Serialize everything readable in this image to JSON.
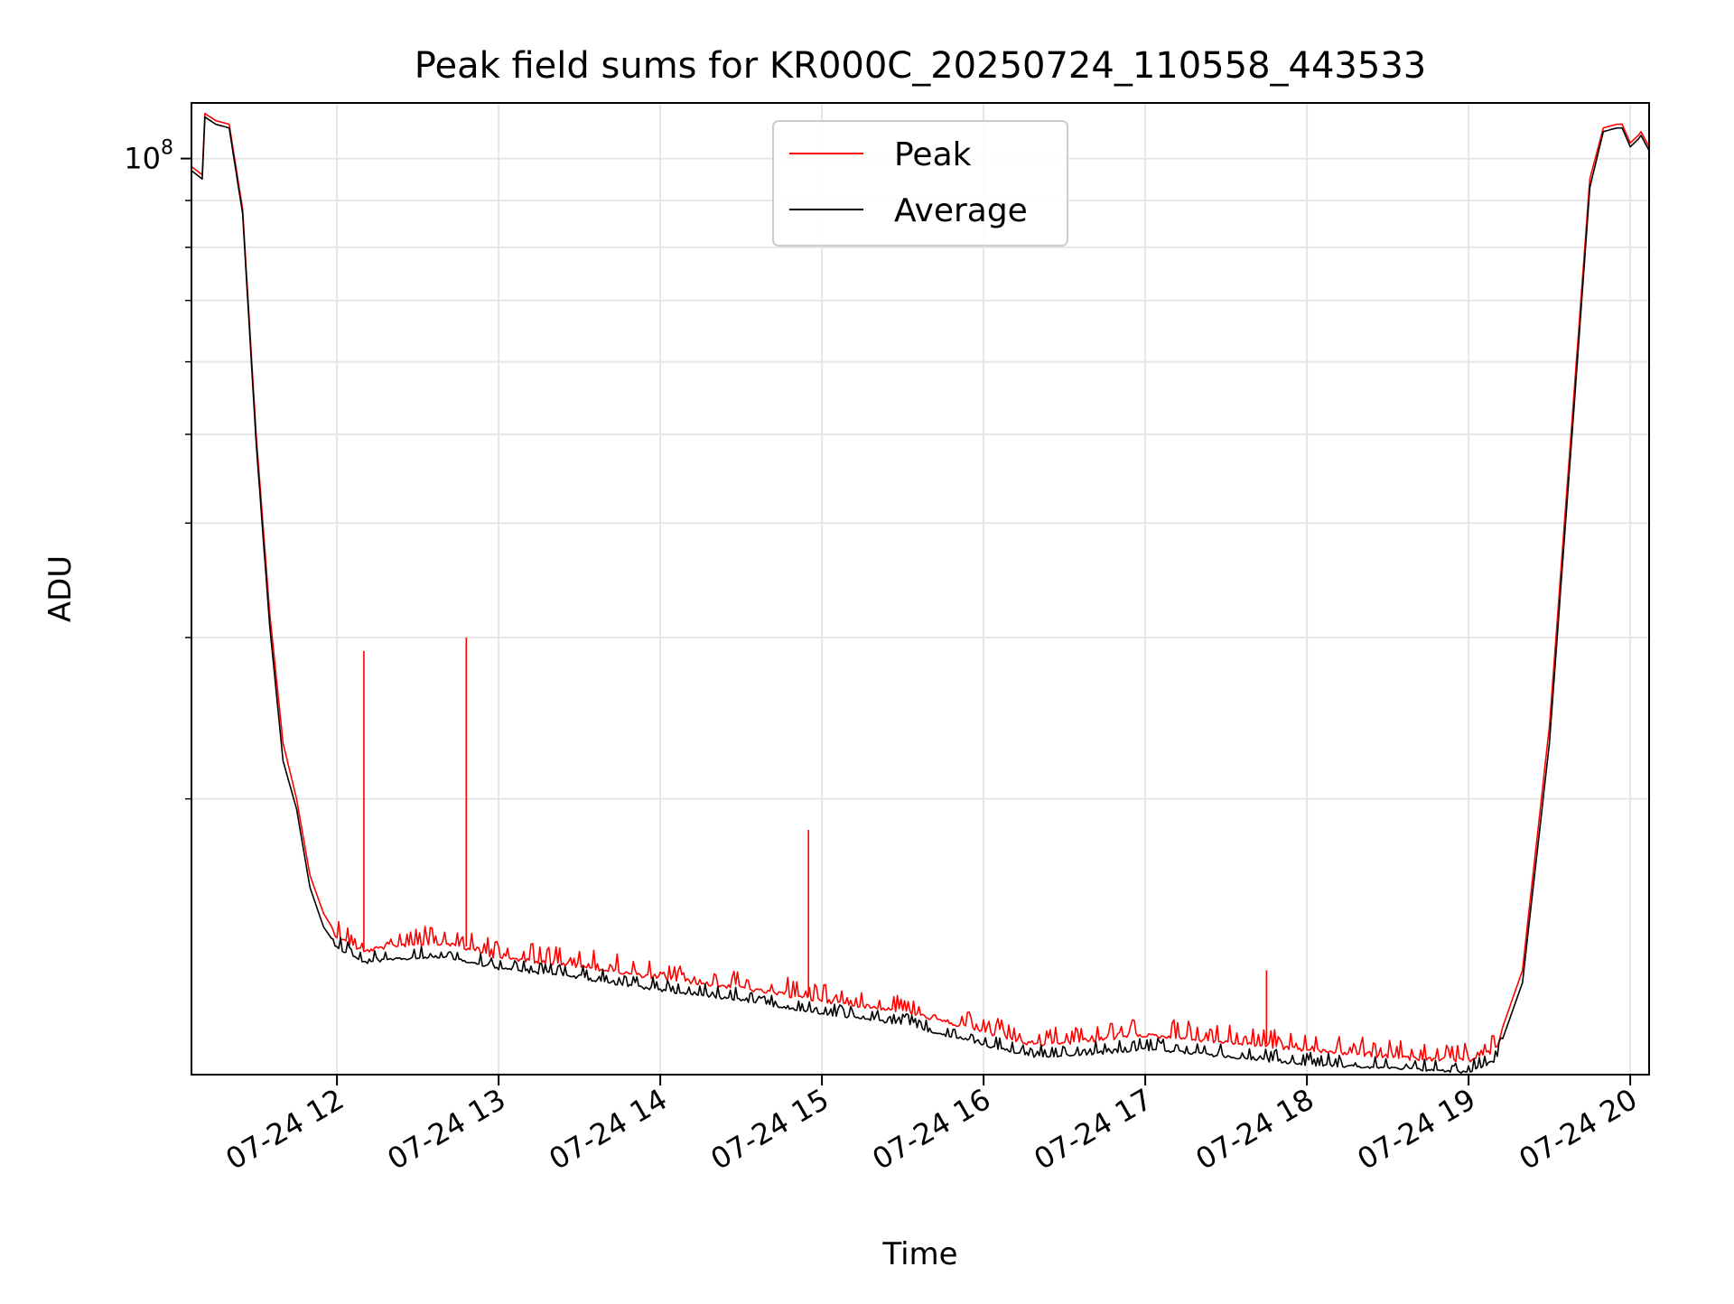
{
  "chart_data": {
    "type": "line",
    "title": "Peak field sums for KR000C_20250724_110558_443533",
    "xlabel": "Time",
    "ylabel": "ADU",
    "y_scale": "log",
    "grid": true,
    "legend_position": "upper-center",
    "xlim": [
      "2025-07-24 11:06",
      "2025-07-24 20:07"
    ],
    "ylim": [
      10000000,
      115000000
    ],
    "x_ticks": [
      {
        "value": "2025-07-24 12:00",
        "label": "07-24 12"
      },
      {
        "value": "2025-07-24 13:00",
        "label": "07-24 13"
      },
      {
        "value": "2025-07-24 14:00",
        "label": "07-24 14"
      },
      {
        "value": "2025-07-24 15:00",
        "label": "07-24 15"
      },
      {
        "value": "2025-07-24 16:00",
        "label": "07-24 16"
      },
      {
        "value": "2025-07-24 17:00",
        "label": "07-24 17"
      },
      {
        "value": "2025-07-24 18:00",
        "label": "07-24 18"
      },
      {
        "value": "2025-07-24 19:00",
        "label": "07-24 19"
      },
      {
        "value": "2025-07-24 20:00",
        "label": "07-24 20"
      }
    ],
    "y_ticks": [
      {
        "value": 100000000,
        "base": "10",
        "exponent": "8"
      }
    ],
    "series": [
      {
        "name": "Peak",
        "color": "#ff0000",
        "x": [
          "2025-07-24 11:06",
          "2025-07-24 11:08",
          "2025-07-24 11:10",
          "2025-07-24 11:11",
          "2025-07-24 11:15",
          "2025-07-24 11:20",
          "2025-07-24 11:25",
          "2025-07-24 11:30",
          "2025-07-24 11:35",
          "2025-07-24 11:40",
          "2025-07-24 11:45",
          "2025-07-24 11:50",
          "2025-07-24 11:55",
          "2025-07-24 12:00",
          "2025-07-24 12:10",
          "2025-07-24 12:20",
          "2025-07-24 12:40",
          "2025-07-24 13:00",
          "2025-07-24 13:30",
          "2025-07-24 14:00",
          "2025-07-24 14:30",
          "2025-07-24 15:00",
          "2025-07-24 15:30",
          "2025-07-24 16:00",
          "2025-07-24 16:20",
          "2025-07-24 16:45",
          "2025-07-24 17:00",
          "2025-07-24 17:30",
          "2025-07-24 18:00",
          "2025-07-24 18:30",
          "2025-07-24 18:45",
          "2025-07-24 19:00",
          "2025-07-24 19:10",
          "2025-07-24 19:20",
          "2025-07-24 19:30",
          "2025-07-24 19:40",
          "2025-07-24 19:45",
          "2025-07-24 19:50",
          "2025-07-24 19:55",
          "2025-07-24 19:57",
          "2025-07-24 20:00",
          "2025-07-24 20:03",
          "2025-07-24 20:04",
          "2025-07-24 20:07"
        ],
        "y": [
          98000000,
          97000000,
          96000000,
          112000000,
          110000000,
          109000000,
          88000000,
          50000000,
          32000000,
          23000000,
          20000000,
          16500000,
          15000000,
          14200000,
          13700000,
          13900000,
          14000000,
          13500000,
          13200000,
          12800000,
          12500000,
          12100000,
          11800000,
          11200000,
          10800000,
          11000000,
          11100000,
          10900000,
          10700000,
          10500000,
          10450000,
          10400000,
          10700000,
          13000000,
          24000000,
          60000000,
          95000000,
          108000000,
          109000000,
          109000000,
          104000000,
          106000000,
          107000000,
          103000000
        ]
      },
      {
        "name": "Average",
        "color": "#000000",
        "x": [
          "2025-07-24 11:06",
          "2025-07-24 11:08",
          "2025-07-24 11:10",
          "2025-07-24 11:11",
          "2025-07-24 11:15",
          "2025-07-24 11:20",
          "2025-07-24 11:25",
          "2025-07-24 11:30",
          "2025-07-24 11:35",
          "2025-07-24 11:40",
          "2025-07-24 11:45",
          "2025-07-24 11:50",
          "2025-07-24 11:55",
          "2025-07-24 12:00",
          "2025-07-24 12:10",
          "2025-07-24 12:20",
          "2025-07-24 12:40",
          "2025-07-24 13:00",
          "2025-07-24 13:30",
          "2025-07-24 14:00",
          "2025-07-24 14:30",
          "2025-07-24 15:00",
          "2025-07-24 15:30",
          "2025-07-24 16:00",
          "2025-07-24 16:20",
          "2025-07-24 16:45",
          "2025-07-24 17:00",
          "2025-07-24 17:30",
          "2025-07-24 18:00",
          "2025-07-24 18:30",
          "2025-07-24 18:45",
          "2025-07-24 19:00",
          "2025-07-24 19:10",
          "2025-07-24 19:20",
          "2025-07-24 19:30",
          "2025-07-24 19:40",
          "2025-07-24 19:45",
          "2025-07-24 19:50",
          "2025-07-24 19:55",
          "2025-07-24 19:57",
          "2025-07-24 20:00",
          "2025-07-24 20:03",
          "2025-07-24 20:04",
          "2025-07-24 20:07"
        ],
        "y": [
          97000000,
          96000000,
          95000000,
          111000000,
          109000000,
          108000000,
          87000000,
          49000000,
          31000000,
          22000000,
          19500000,
          16000000,
          14500000,
          13800000,
          13300000,
          13400000,
          13500000,
          13100000,
          12800000,
          12400000,
          12100000,
          11700000,
          11400000,
          10800000,
          10500000,
          10600000,
          10700000,
          10500000,
          10300000,
          10200000,
          10150000,
          10100000,
          10400000,
          12600000,
          23000000,
          58000000,
          93000000,
          107000000,
          108000000,
          108000000,
          103000000,
          105000000,
          106000000,
          102000000
        ]
      }
    ],
    "spikes": [
      {
        "x": "2025-07-24 12:10",
        "y": 29000000,
        "series": "Peak"
      },
      {
        "x": "2025-07-24 12:48",
        "y": 30000000,
        "series": "Peak"
      },
      {
        "x": "2025-07-24 14:55",
        "y": 18500000,
        "series": "Peak"
      },
      {
        "x": "2025-07-24 17:45",
        "y": 13000000,
        "series": "Peak"
      }
    ]
  }
}
